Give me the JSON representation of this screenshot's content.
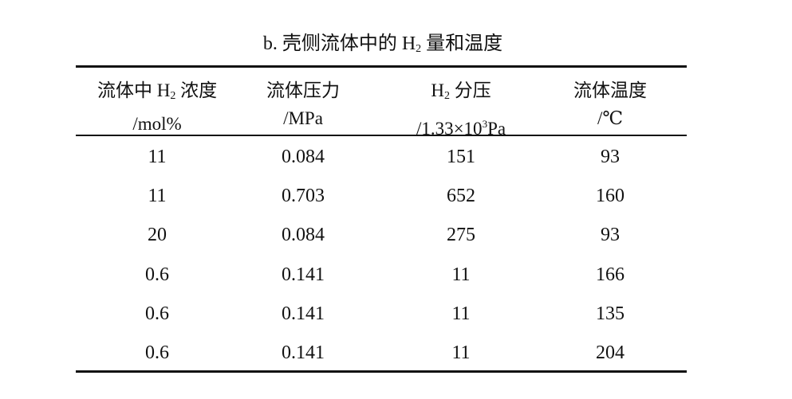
{
  "title": {
    "prefix": "b. 壳侧流体中的 H",
    "sub": "2",
    "suffix": " 量和温度"
  },
  "headers": [
    {
      "line1_pre": "流体中 H",
      "line1_sub": "2",
      "line1_post": " 浓度",
      "line2": "/mol%"
    },
    {
      "line1_pre": "流体压力",
      "line1_sub": "",
      "line1_post": "",
      "line2": "/MPa"
    },
    {
      "line1_pre": "H",
      "line1_sub": "2",
      "line1_post": " 分压",
      "line2_pre": "/1.33×10",
      "line2_sup": "3",
      "line2_post": "Pa"
    },
    {
      "line1_pre": "流体温度",
      "line1_sub": "",
      "line1_post": "",
      "line2": "/℃"
    }
  ],
  "rows": [
    [
      "11",
      "0.084",
      "151",
      "93"
    ],
    [
      "11",
      "0.703",
      "652",
      "160"
    ],
    [
      "20",
      "0.084",
      "275",
      "93"
    ],
    [
      "0.6",
      "0.141",
      "11",
      "166"
    ],
    [
      "0.6",
      "0.141",
      "11",
      "135"
    ],
    [
      "0.6",
      "0.141",
      "11",
      "204"
    ]
  ]
}
